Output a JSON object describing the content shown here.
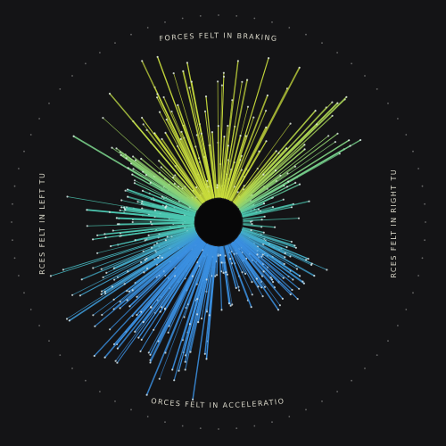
{
  "chart_data": {
    "type": "radial-burst",
    "title": "",
    "labels": {
      "top": "FORCES FELT IN BRAKING",
      "bottom": "FORCES FELT IN ACCELERATION",
      "left": "FORCES FELT IN LEFT TURN",
      "right": "FORCES FELT IN RIGHT TURN"
    },
    "grid": "dotted outer ring",
    "colors": {
      "background": "#141416",
      "braking": "#c8dc3c",
      "mid": "#4cc6b0",
      "acceleration": "#3a8fe0",
      "center": "#070708",
      "label": "#d8d6c8",
      "ring_dot": "#6a6a6a"
    },
    "series": [
      {
        "direction": "braking",
        "angle_range_deg": [
          -150,
          -25
        ],
        "line_count": 110
      },
      {
        "direction": "acceleration",
        "angle_range_deg": [
          95,
          165
        ],
        "line_count": 120
      },
      {
        "direction": "left-upper",
        "angle_range_deg": [
          -175,
          -140
        ],
        "line_count": 40
      },
      {
        "direction": "right-lower",
        "angle_range_deg": [
          20,
          60
        ],
        "line_count": 45
      },
      {
        "direction": "left",
        "angle_range_deg": [
          165,
          190
        ],
        "line_count": 35
      }
    ]
  }
}
